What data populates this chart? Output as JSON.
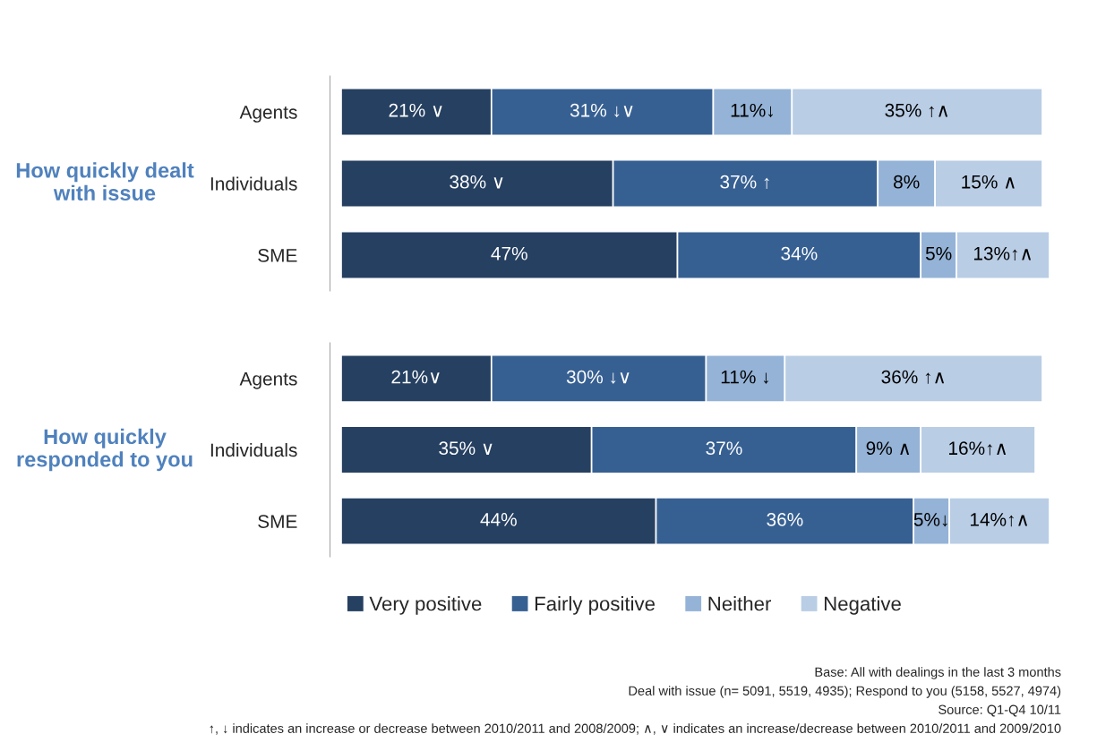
{
  "chart_data": [
    {
      "type": "bar",
      "orientation": "horizontal",
      "stacked": true,
      "title": "How quickly dealt with issue",
      "categories": [
        "Agents",
        "Individuals",
        "SME"
      ],
      "series": [
        {
          "color": "#264061",
          "values": [
            21,
            38,
            47
          ],
          "value_labels": [
            "21% ∨",
            "38% ∨",
            "47%"
          ]
        },
        {
          "color": "#376092",
          "values": [
            31,
            37,
            34
          ],
          "value_labels": [
            "31% ↓∨",
            "37% ↑",
            "34%"
          ]
        },
        {
          "color": "#95b3d7",
          "values": [
            11,
            8,
            5
          ],
          "value_labels": [
            "11%↓",
            "8%",
            "5%"
          ]
        },
        {
          "color": "#b9cde5",
          "values": [
            35,
            15,
            13
          ],
          "value_labels": [
            "35% ↑∧",
            "15% ∧",
            "13%↑∧"
          ]
        }
      ]
    },
    {
      "type": "bar",
      "orientation": "horizontal",
      "stacked": true,
      "title": "How quickly responded to you",
      "categories": [
        "Agents",
        "Individuals",
        "SME"
      ],
      "legend": "bottom",
      "series": [
        {
          "name": "Very positive",
          "color": "#264061",
          "values": [
            21,
            35,
            44
          ],
          "value_labels": [
            "21%∨",
            "35% ∨",
            "44%"
          ]
        },
        {
          "name": "Fairly positive",
          "color": "#376092",
          "values": [
            30,
            37,
            36
          ],
          "value_labels": [
            "30% ↓∨",
            "37%",
            "36%"
          ]
        },
        {
          "name": "Neither",
          "color": "#95b3d7",
          "values": [
            11,
            9,
            5
          ],
          "value_labels": [
            "11% ↓",
            "9% ∧",
            "5%↓"
          ]
        },
        {
          "name": "Negative",
          "color": "#b9cde5",
          "values": [
            36,
            16,
            14
          ],
          "value_labels": [
            "36% ↑∧",
            "16%↑∧",
            "14%↑∧"
          ]
        }
      ],
      "annotations": [
        "Base: All with dealings in the last 3 months",
        "Deal with issue (n= 5091, 5519, 4935); Respond to you (5158, 5527, 4974)",
        "Source: Q1-Q4 10/11",
        "↑, ↓ indicates an increase or decrease between 2010/2011 and 2008/2009; ∧, ∨ indicates an increase/decrease between 2010/2011 and 2009/2010"
      ]
    }
  ]
}
